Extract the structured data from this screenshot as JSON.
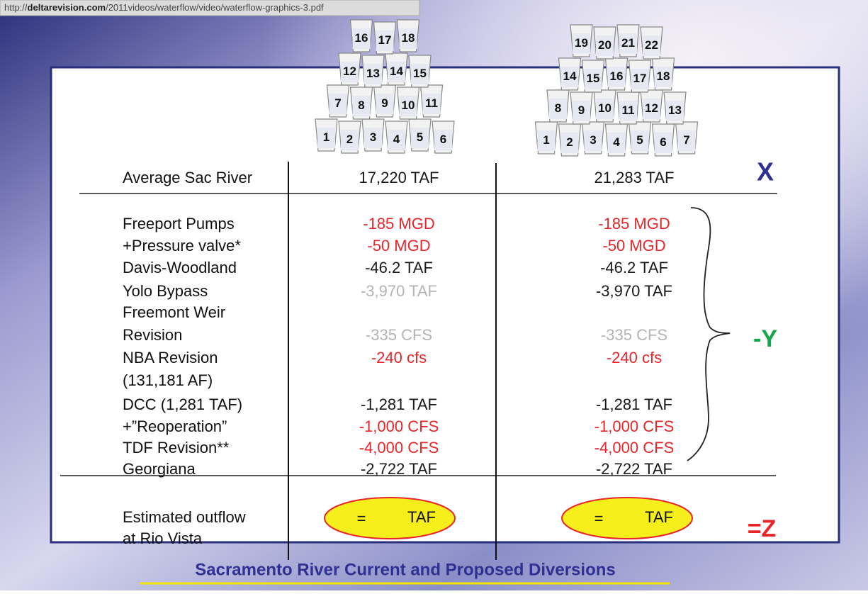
{
  "url": {
    "scheme": "http://",
    "domain": "deltarevision.com",
    "path": "/2011videos/waterflow/video/waterflow-graphics-3.pdf"
  },
  "cups": {
    "left": [
      [
        "1",
        "2",
        "3",
        "4",
        "5",
        "6"
      ],
      [
        "7",
        "8",
        "9",
        "10",
        "11"
      ],
      [
        "12",
        "13",
        "14",
        "15"
      ],
      [
        "16",
        "17",
        "18"
      ]
    ],
    "right": [
      [
        "1",
        "2",
        "3",
        "4",
        "5",
        "6",
        "7"
      ],
      [
        "8",
        "9",
        "10",
        "11",
        "12",
        "13"
      ],
      [
        "14",
        "15",
        "16",
        "17",
        "18"
      ],
      [
        "19",
        "20",
        "21",
        "22"
      ]
    ]
  },
  "table": {
    "lines": [
      {
        "label": "Average Sac River",
        "left": {
          "text": "17,220 TAF",
          "color": "#1a1a1a"
        },
        "right": {
          "text": "21,283 TAF",
          "color": "#1a1a1a"
        }
      },
      {
        "label": "Freeport Pumps",
        "left": {
          "text": "-185 MGD",
          "color": "#e8262a"
        },
        "right": {
          "text": "-185 MGD",
          "color": "#e8262a"
        }
      },
      {
        "label": "  +Pressure valve*",
        "left": {
          "text": "-50 MGD",
          "color": "#e8262a"
        },
        "right": {
          "text": "-50 MGD",
          "color": "#e8262a"
        }
      },
      {
        "label": "Davis-Woodland",
        "left": {
          "text": "-46.2 TAF",
          "color": "#1a1a1a"
        },
        "right": {
          "text": "-46.2 TAF",
          "color": "#1a1a1a"
        }
      },
      {
        "label": "Yolo Bypass",
        "left": {
          "text": "-3,970 TAF",
          "color": "#b4b4b4"
        },
        "right": {
          "text": "-3,970 TAF",
          "color": "#1a1a1a"
        }
      },
      {
        "label": "Freemont Weir"
      },
      {
        "label": "  Revision",
        "left": {
          "text": "-335 CFS",
          "color": "#b4b4b4"
        },
        "right": {
          "text": "-335 CFS",
          "color": "#b4b4b4"
        }
      },
      {
        "label": "NBA Revision",
        "left": {
          "text": "-240 cfs",
          "color": "#e8262a"
        },
        "right": {
          "text": "-240 cfs",
          "color": "#e8262a"
        }
      },
      {
        "label": "(131,181 AF)"
      },
      {
        "label": "DCC (1,281 TAF)",
        "left": {
          "text": "-1,281 TAF",
          "color": "#1a1a1a"
        },
        "right": {
          "text": "-1,281 TAF",
          "color": "#1a1a1a"
        }
      },
      {
        "label": "  +”Reoperation”",
        "left": {
          "text": "-1,000 CFS",
          "color": "#e8262a"
        },
        "right": {
          "text": "-1,000 CFS",
          "color": "#e8262a"
        }
      },
      {
        "label": "TDF Revision**",
        "left": {
          "text": "-4,000 CFS",
          "color": "#e8262a"
        },
        "right": {
          "text": "-4,000 CFS",
          "color": "#e8262a"
        }
      },
      {
        "label": "Georgiana",
        "left": {
          "text": "-2,722 TAF",
          "color": "#1a1a1a"
        },
        "right": {
          "text": "-2,722 TAF",
          "color": "#1a1a1a"
        }
      }
    ],
    "outflow": {
      "label": [
        "Estimated outflow",
        "at Rio Vista"
      ],
      "equals": "=",
      "unit": "TAF"
    }
  },
  "symbols": {
    "x": "X",
    "y": "-Y",
    "z": "=Z"
  },
  "footer": {
    "title": "Sacramento River Current and Proposed Diversions"
  }
}
